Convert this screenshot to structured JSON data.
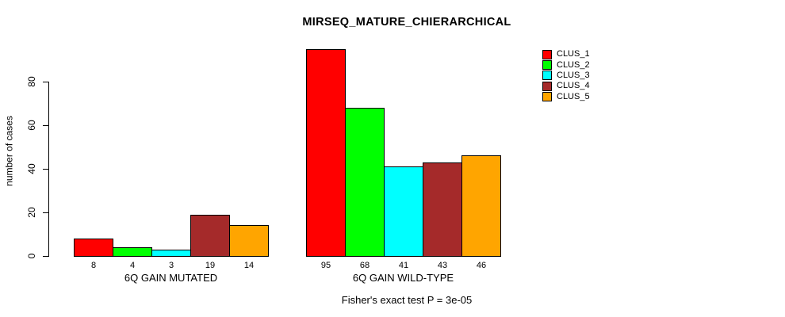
{
  "title": "MIRSEQ_MATURE_CHIERARCHICAL",
  "ylabel": "number of cases",
  "footer": "Fisher's exact test P = 3e-05",
  "chart_data": {
    "type": "bar",
    "categories": [
      "6Q GAIN MUTATED",
      "6Q GAIN WILD-TYPE"
    ],
    "series": [
      {
        "name": "CLUS_1",
        "color": "#FF0000",
        "values": [
          8,
          95
        ]
      },
      {
        "name": "CLUS_2",
        "color": "#00FF00",
        "values": [
          4,
          68
        ]
      },
      {
        "name": "CLUS_3",
        "color": "#00FFFF",
        "values": [
          3,
          41
        ]
      },
      {
        "name": "CLUS_4",
        "color": "#A52A2A",
        "values": [
          19,
          43
        ]
      },
      {
        "name": "CLUS_5",
        "color": "#FFA500",
        "values": [
          14,
          46
        ]
      }
    ],
    "bar_value_labels": {
      "6Q GAIN MUTATED": [
        8,
        4,
        3,
        19,
        14
      ],
      "6Q GAIN WILD-TYPE": [
        95,
        68,
        41,
        43,
        46
      ]
    },
    "yticks": [
      0,
      20,
      40,
      60,
      80
    ],
    "ylim": [
      0,
      80
    ],
    "grid": false,
    "legend_position": "top-right",
    "legend_entries": [
      "CLUS_1",
      "CLUS_2",
      "CLUS_3",
      "CLUS_4",
      "CLUS_5"
    ]
  }
}
